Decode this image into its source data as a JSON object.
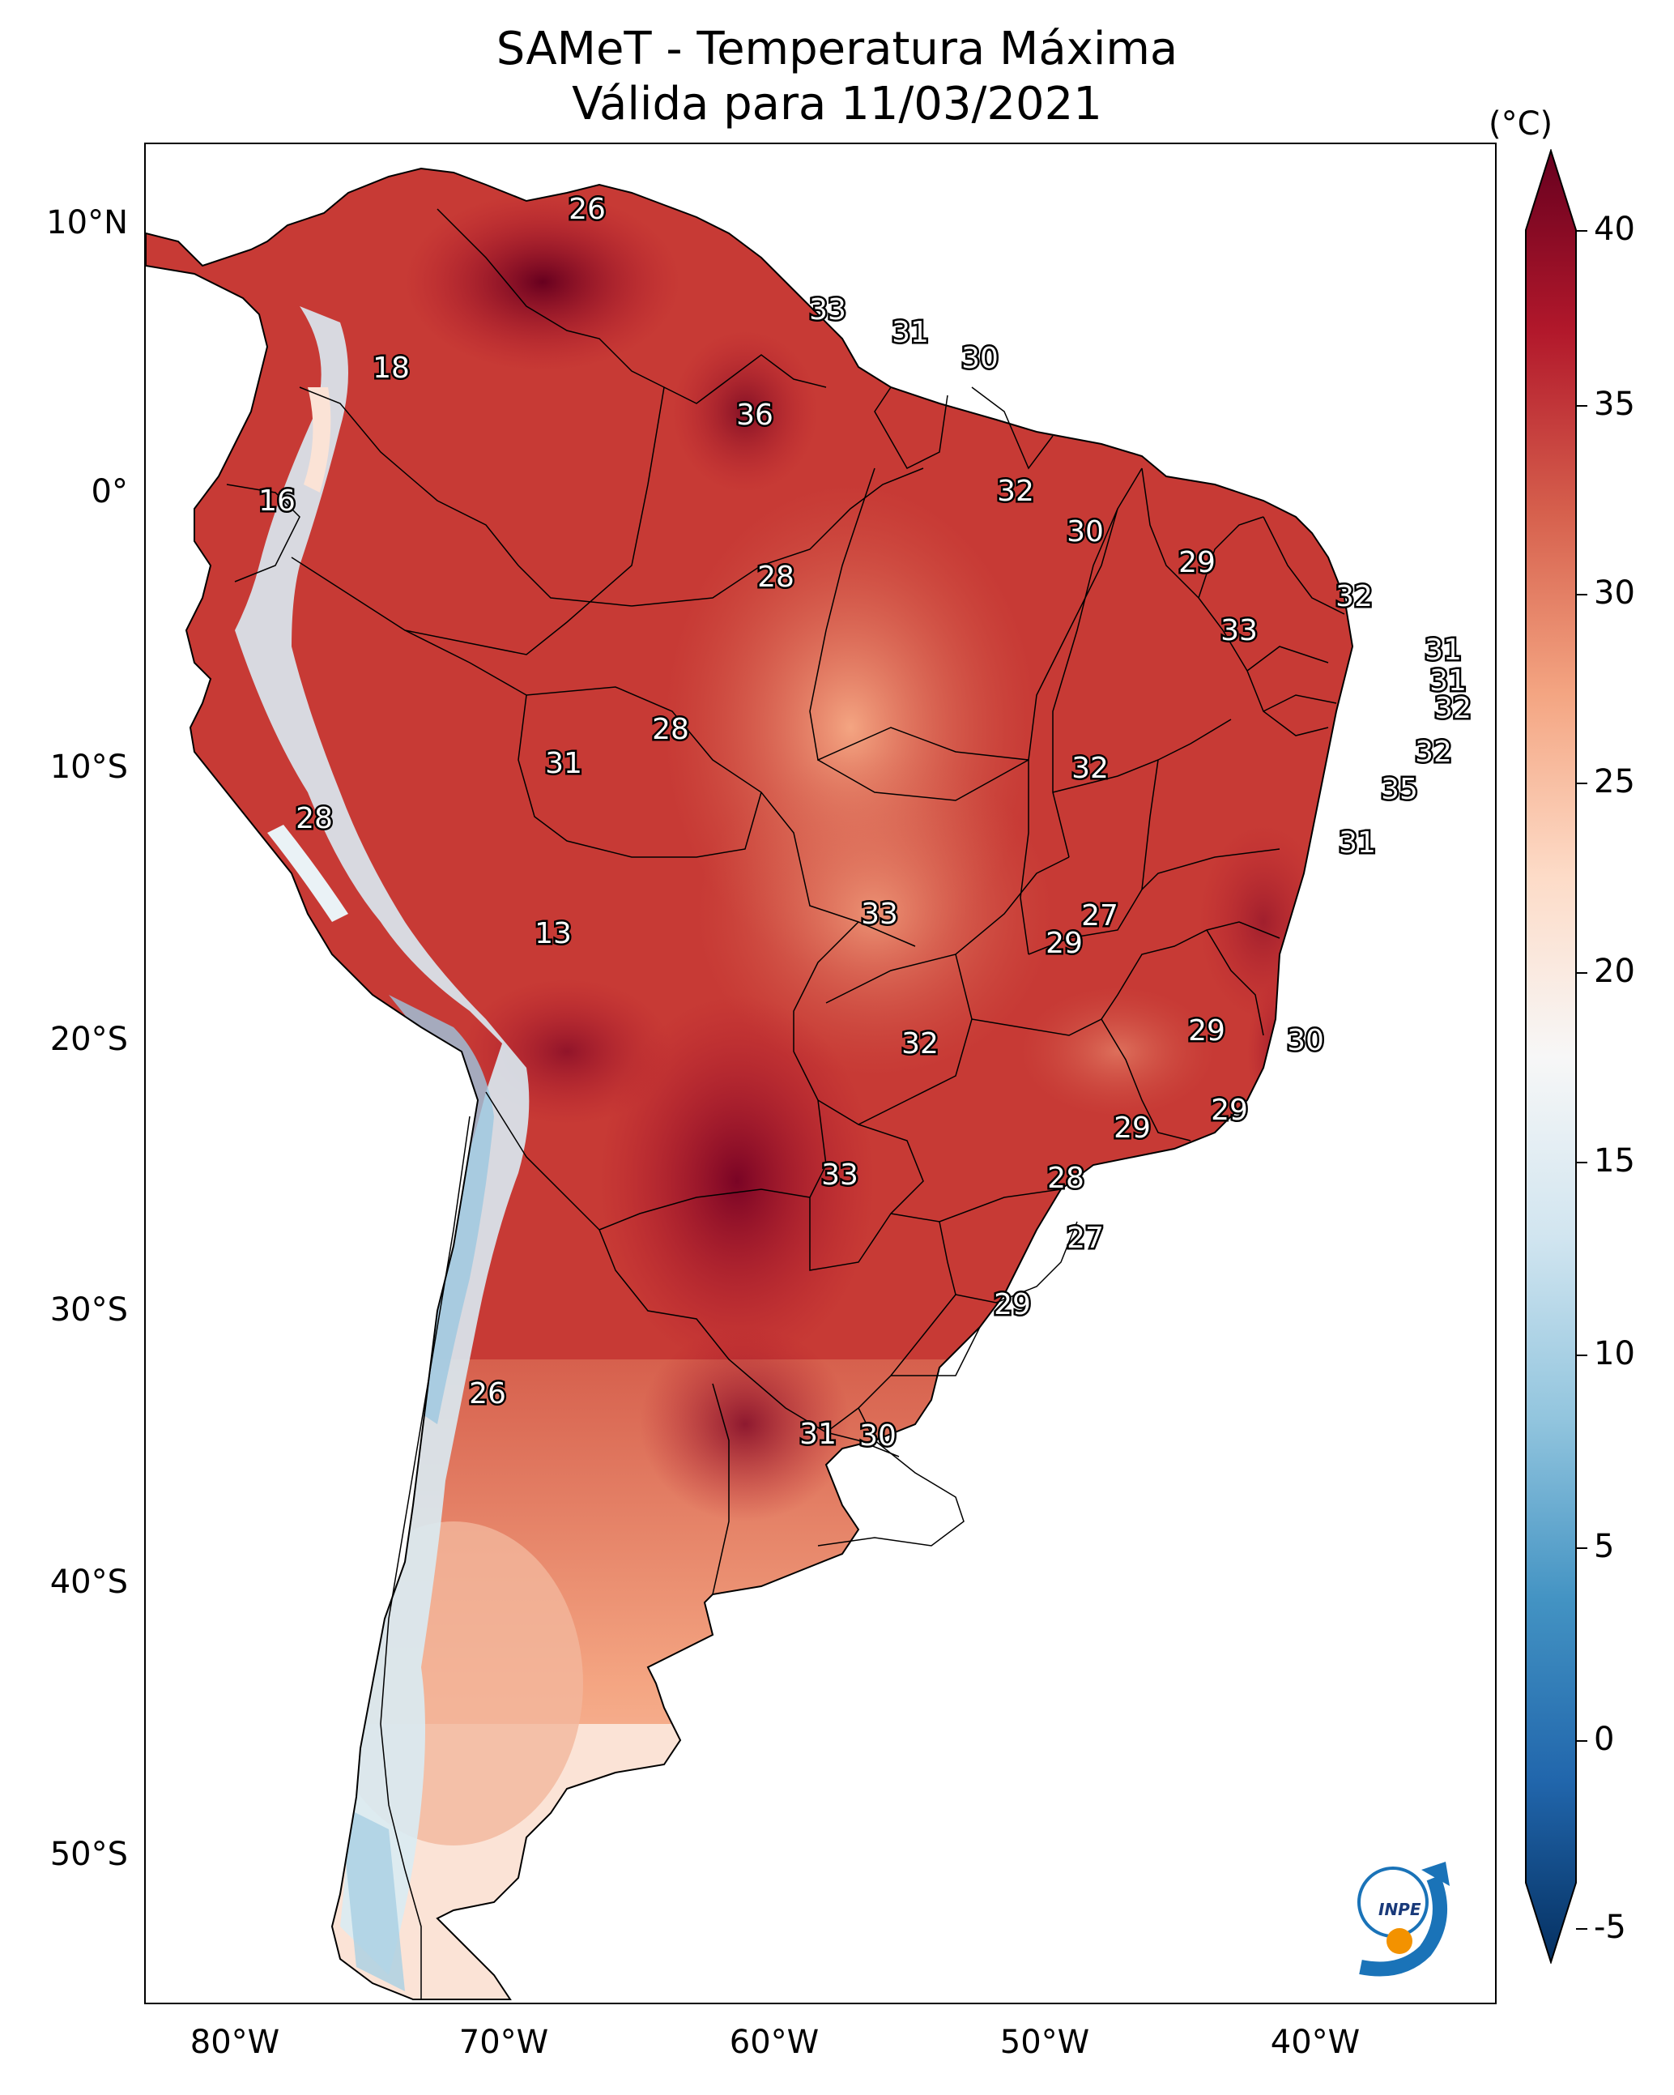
{
  "title": {
    "line1": "SAMeT - Temperatura Máxima",
    "line2": "Válida para 11/03/2021"
  },
  "axes": {
    "lat_labels": [
      "10°N",
      "0°",
      "10°S",
      "20°S",
      "30°S",
      "40°S",
      "50°S"
    ],
    "lon_labels": [
      "80°W",
      "70°W",
      "60°W",
      "50°W",
      "40°W"
    ]
  },
  "colorbar": {
    "unit": "(°C)",
    "min": -5,
    "max": 40,
    "ticks": [
      "40",
      "35",
      "30",
      "25",
      "20",
      "15",
      "10",
      "5",
      "0",
      "-5"
    ],
    "colors": [
      "#053061",
      "#2166ac",
      "#4393c3",
      "#92c5de",
      "#d1e5f0",
      "#f7f7f7",
      "#fddbc7",
      "#f4a582",
      "#d6604d",
      "#b2182b",
      "#67001f"
    ]
  },
  "map_labels": [
    {
      "name": "label-26-north",
      "value": "26"
    },
    {
      "name": "label-18-colombia",
      "value": "18"
    },
    {
      "name": "label-16-ecuador",
      "value": "16"
    },
    {
      "name": "label-33-guyana",
      "value": "33"
    },
    {
      "name": "label-31-suriname",
      "value": "31"
    },
    {
      "name": "label-30-guiana",
      "value": "30"
    },
    {
      "name": "label-36-roraima",
      "value": "36"
    },
    {
      "name": "label-32-amapa",
      "value": "32"
    },
    {
      "name": "label-30-belem",
      "value": "30"
    },
    {
      "name": "label-28-amazonas",
      "value": "28"
    },
    {
      "name": "label-29-maranhao",
      "value": "29"
    },
    {
      "name": "label-32-ceara",
      "value": "32"
    },
    {
      "name": "label-33-piaui",
      "value": "33"
    },
    {
      "name": "label-31-rn",
      "value": "31"
    },
    {
      "name": "label-31-pb",
      "value": "31"
    },
    {
      "name": "label-32-pe",
      "value": "32"
    },
    {
      "name": "label-32-al",
      "value": "32"
    },
    {
      "name": "label-35-se",
      "value": "35"
    },
    {
      "name": "label-31-bahia",
      "value": "31"
    },
    {
      "name": "label-28-acre-ro",
      "value": "28"
    },
    {
      "name": "label-31-acre",
      "value": "31"
    },
    {
      "name": "label-32-tocantins",
      "value": "32"
    },
    {
      "name": "label-28-peru",
      "value": "28"
    },
    {
      "name": "label-13-andes",
      "value": "13"
    },
    {
      "name": "label-33-mato-grosso",
      "value": "33"
    },
    {
      "name": "label-27-goias",
      "value": "27"
    },
    {
      "name": "label-29-goias",
      "value": "29"
    },
    {
      "name": "label-29-minas",
      "value": "29"
    },
    {
      "name": "label-30-es",
      "value": "30"
    },
    {
      "name": "label-32-ms",
      "value": "32"
    },
    {
      "name": "label-29-sp",
      "value": "29"
    },
    {
      "name": "label-29-rj",
      "value": "29"
    },
    {
      "name": "label-33-paraguay",
      "value": "33"
    },
    {
      "name": "label-28-parana",
      "value": "28"
    },
    {
      "name": "label-27-sc",
      "value": "27"
    },
    {
      "name": "label-29-rs",
      "value": "29"
    },
    {
      "name": "label-26-chile",
      "value": "26"
    },
    {
      "name": "label-31-uruguay",
      "value": "31"
    },
    {
      "name": "label-30-uruguay",
      "value": "30"
    }
  ],
  "logo": {
    "text": "INPE"
  }
}
